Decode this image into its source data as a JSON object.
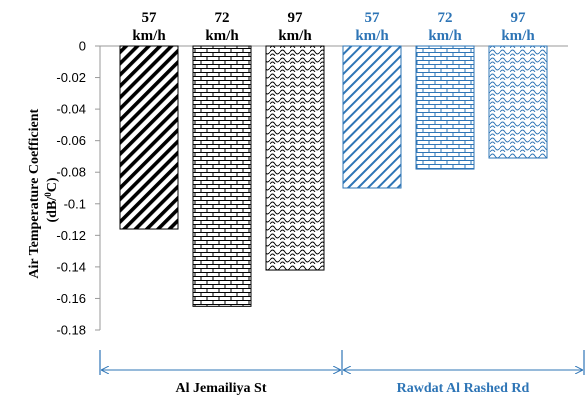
{
  "chart_data": {
    "type": "bar",
    "ylabel_lines": [
      "Air Temperature Coefficient",
      "(dB/",
      "0",
      "C)"
    ],
    "ylim": [
      -0.18,
      0
    ],
    "yticks": [
      "0",
      "-0.02",
      "-0.04",
      "-0.06",
      "-0.08",
      "-0.1",
      "-0.12",
      "-0.14",
      "-0.16",
      "-0.18"
    ],
    "grid": false,
    "bars": [
      {
        "speed": "57",
        "unit": "km/h",
        "value": -0.116,
        "group": "Al Jemailiya St",
        "pattern": "diag-thick",
        "color": "#000000"
      },
      {
        "speed": "72",
        "unit": "km/h",
        "value": -0.165,
        "group": "Al Jemailiya St",
        "pattern": "brick",
        "color": "#000000"
      },
      {
        "speed": "97",
        "unit": "km/h",
        "value": -0.142,
        "group": "Al Jemailiya St",
        "pattern": "scale",
        "color": "#000000"
      },
      {
        "speed": "57",
        "unit": "km/h",
        "value": -0.09,
        "group": "Rawdat Al Rashed Rd",
        "pattern": "diag-thin",
        "color": "#2e75b6"
      },
      {
        "speed": "72",
        "unit": "km/h",
        "value": -0.078,
        "group": "Rawdat Al Rashed Rd",
        "pattern": "brick",
        "color": "#2e75b6"
      },
      {
        "speed": "97",
        "unit": "km/h",
        "value": -0.071,
        "group": "Rawdat Al Rashed Rd",
        "pattern": "scale",
        "color": "#2e75b6"
      }
    ],
    "groups": [
      {
        "label": "Al Jemailiya St",
        "color": "#000000"
      },
      {
        "label": "Rawdat Al Rashed Rd",
        "color": "#2e75b6"
      }
    ]
  }
}
